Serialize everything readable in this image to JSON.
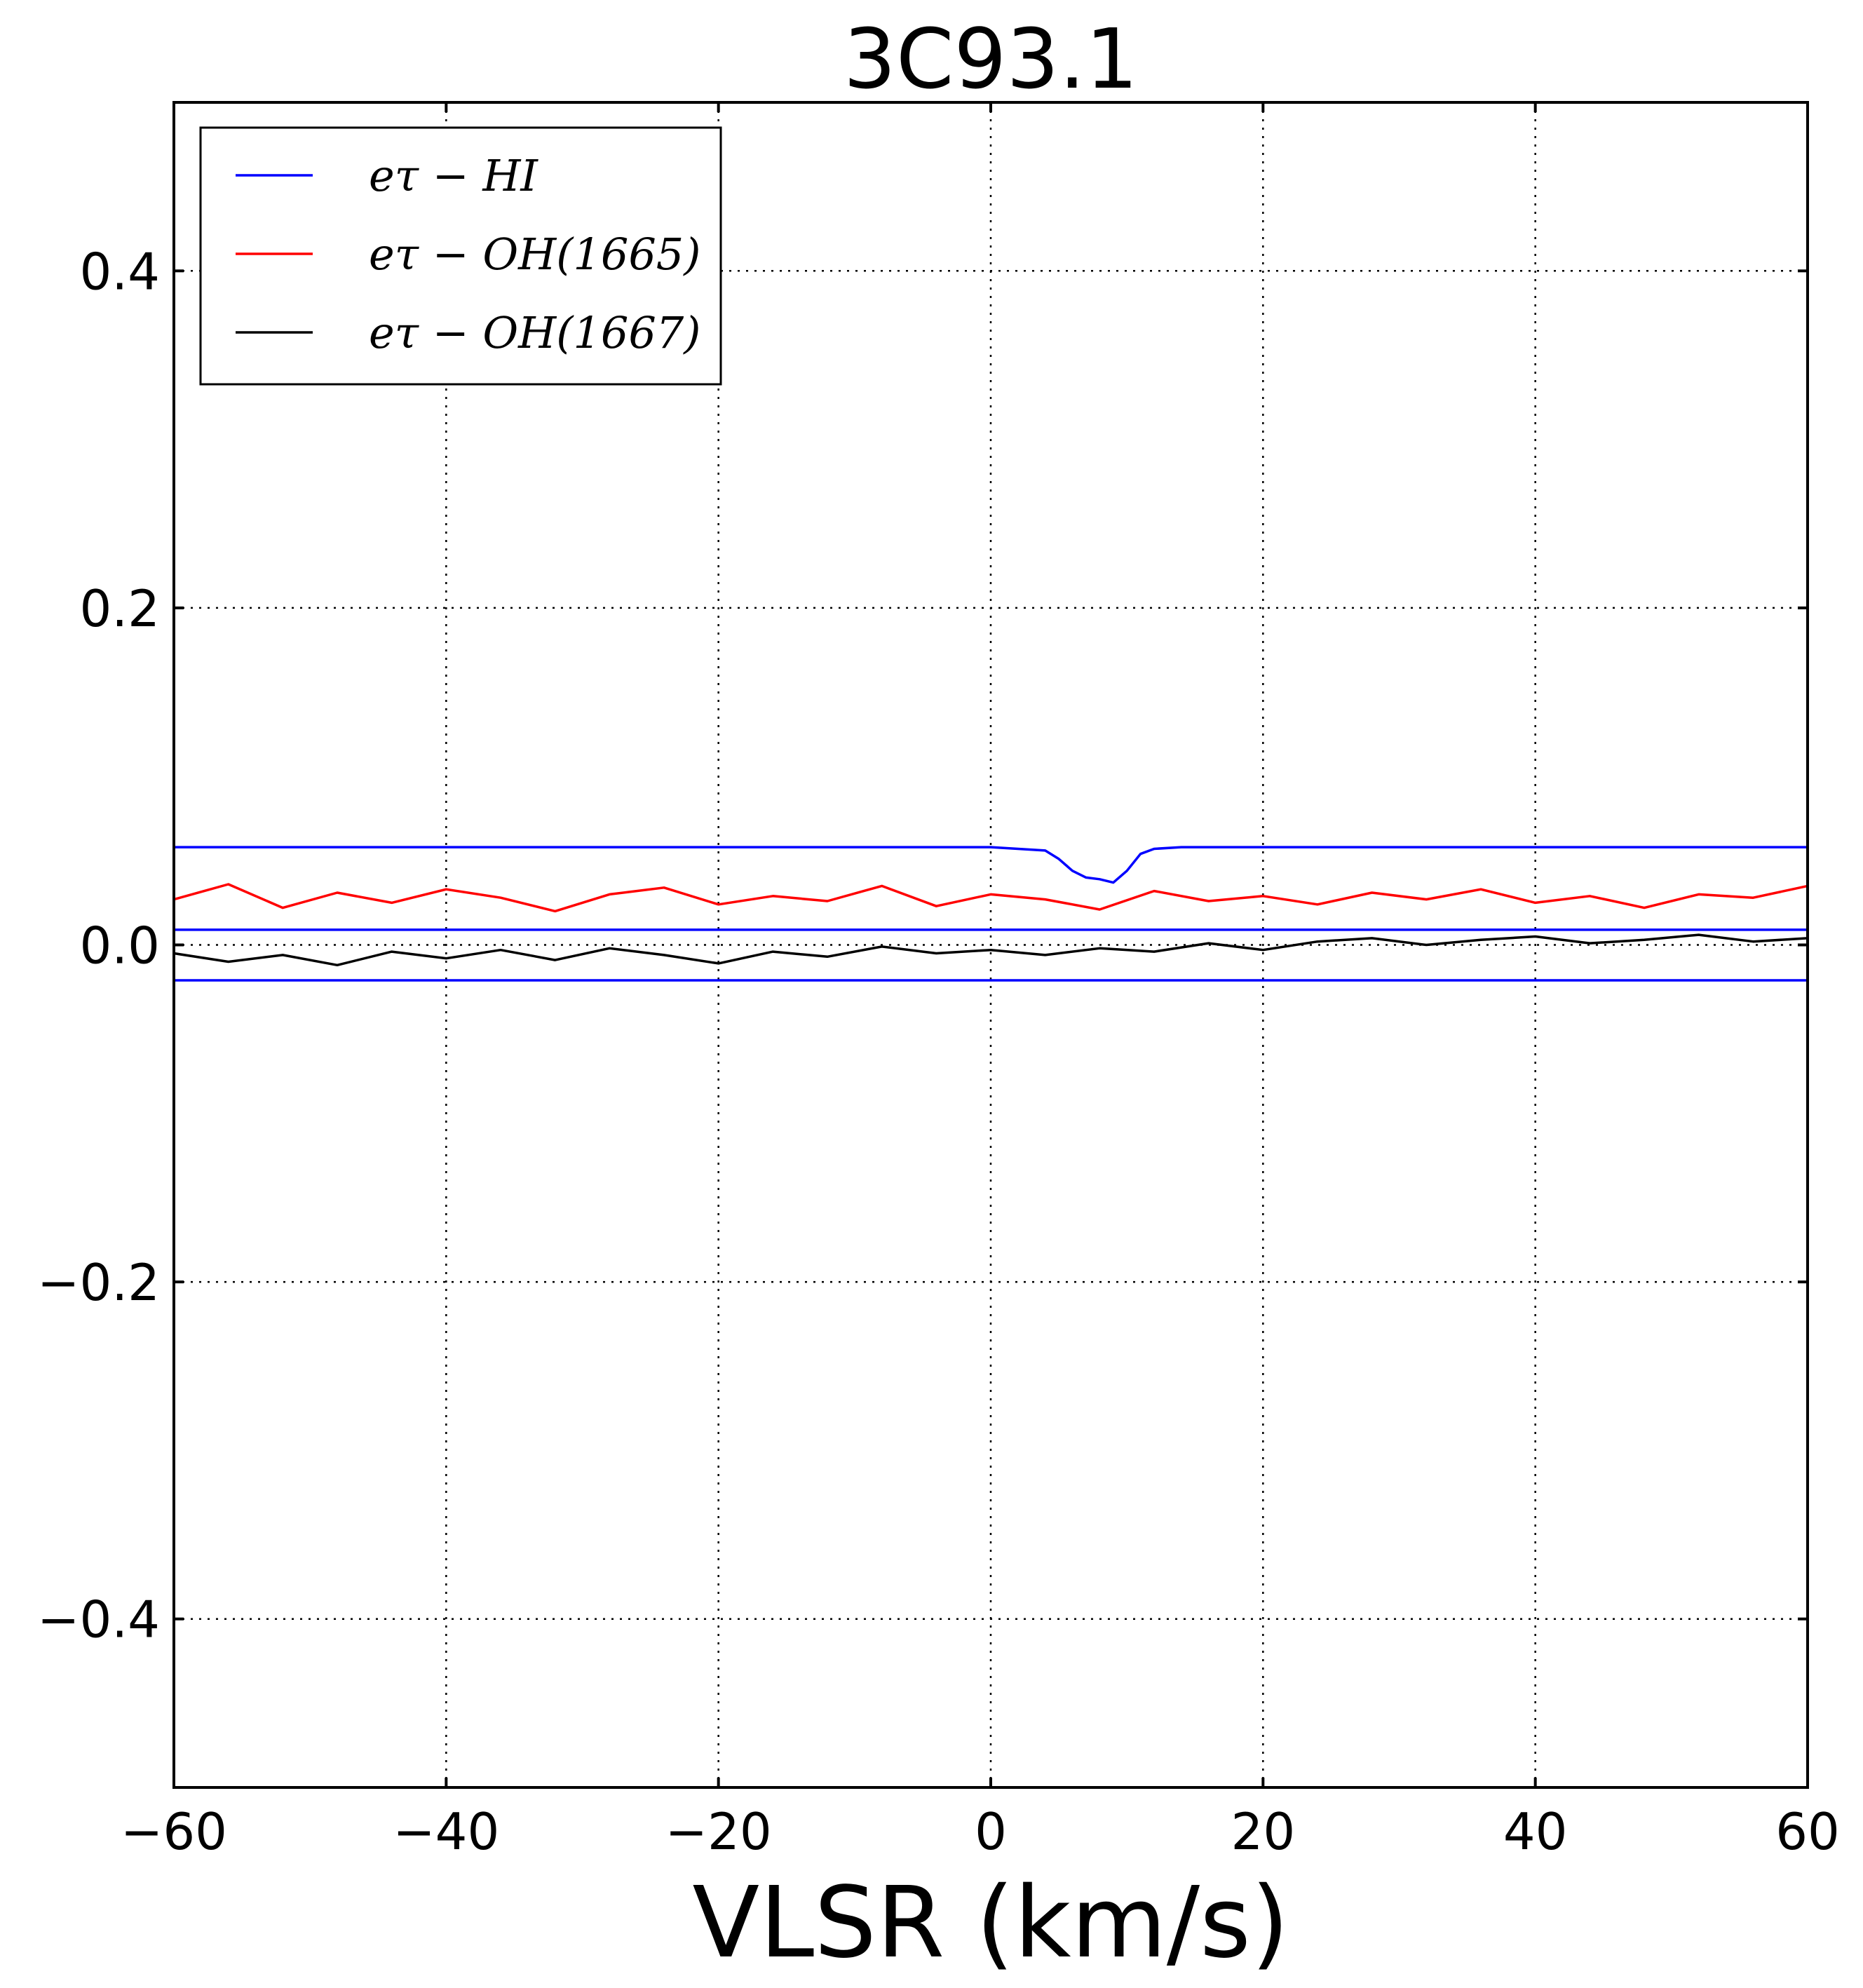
{
  "chart_data": {
    "type": "line",
    "title": "3C93.1",
    "xlabel": "VLSR (km/s)",
    "ylabel": "",
    "xlim": [
      -60,
      60
    ],
    "ylim": [
      -0.5,
      0.5
    ],
    "xticks": [
      -60,
      -40,
      -20,
      0,
      20,
      40,
      60
    ],
    "xtick_labels": [
      "−60",
      "−40",
      "−20",
      "0",
      "20",
      "40",
      "60"
    ],
    "yticks": [
      -0.4,
      -0.2,
      0.0,
      0.2,
      0.4
    ],
    "ytick_labels": [
      "−0.4",
      "−0.2",
      "0.0",
      "0.2",
      "0.4"
    ],
    "grid": true,
    "legend_position": "top-left",
    "series": [
      {
        "name": "eτ − HI",
        "color": "#0000ff",
        "x": [
          -60,
          -40,
          -20,
          -4,
          0,
          4,
          5,
          6,
          7,
          8,
          9,
          10,
          11,
          12,
          14,
          20,
          40,
          60
        ],
        "y": [
          0.058,
          0.058,
          0.058,
          0.058,
          0.058,
          0.056,
          0.051,
          0.044,
          0.04,
          0.039,
          0.037,
          0.044,
          0.054,
          0.057,
          0.058,
          0.058,
          0.058,
          0.058
        ]
      },
      {
        "name": "eτ − OH(1665)",
        "color": "#ff0000",
        "x": [
          -60,
          -56,
          -52,
          -48,
          -44,
          -40,
          -36,
          -32,
          -28,
          -24,
          -20,
          -16,
          -12,
          -8,
          -4,
          0,
          4,
          8,
          12,
          16,
          20,
          24,
          28,
          32,
          36,
          40,
          44,
          48,
          52,
          56,
          60
        ],
        "y": [
          0.027,
          0.036,
          0.022,
          0.031,
          0.025,
          0.033,
          0.028,
          0.02,
          0.03,
          0.034,
          0.024,
          0.029,
          0.026,
          0.035,
          0.023,
          0.03,
          0.027,
          0.021,
          0.032,
          0.026,
          0.029,
          0.024,
          0.031,
          0.027,
          0.033,
          0.025,
          0.029,
          0.022,
          0.03,
          0.028,
          0.035
        ]
      },
      {
        "name": "eτ − OH(1667)",
        "color": "#000000",
        "x": [
          -60,
          -56,
          -52,
          -48,
          -44,
          -40,
          -36,
          -32,
          -28,
          -24,
          -20,
          -16,
          -12,
          -8,
          -4,
          0,
          4,
          8,
          12,
          16,
          20,
          24,
          28,
          32,
          36,
          40,
          44,
          48,
          52,
          56,
          60
        ],
        "y": [
          -0.005,
          -0.01,
          -0.006,
          -0.012,
          -0.004,
          -0.008,
          -0.003,
          -0.009,
          -0.002,
          -0.006,
          -0.011,
          -0.004,
          -0.007,
          -0.001,
          -0.005,
          -0.003,
          -0.006,
          -0.002,
          -0.004,
          0.001,
          -0.003,
          0.002,
          0.004,
          0.0,
          0.003,
          0.005,
          0.001,
          0.003,
          0.006,
          0.002,
          0.004
        ]
      },
      {
        "name": "",
        "color": "#0000ff",
        "x": [
          -60,
          60
        ],
        "y": [
          0.009,
          0.009
        ]
      },
      {
        "name": "",
        "color": "#0000ff",
        "x": [
          -60,
          60
        ],
        "y": [
          -0.021,
          -0.021
        ]
      }
    ]
  }
}
